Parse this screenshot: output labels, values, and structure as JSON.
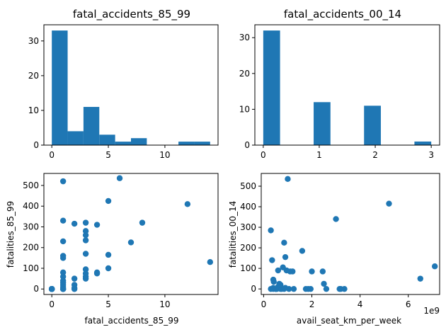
{
  "colors": {
    "bar": "#1f77b4",
    "point": "#1f77b4"
  },
  "chart_data": [
    {
      "type": "bar",
      "title": "fatal_accidents_85_99",
      "xlabel": "",
      "ylabel": "",
      "xlim": [
        -0.7,
        14.7
      ],
      "ylim": [
        0,
        34.65
      ],
      "xticks": [
        0,
        5,
        10
      ],
      "yticks": [
        0,
        10,
        20,
        30
      ],
      "bin_width": 1.4,
      "bin_edges": [
        0,
        1.4,
        2.8,
        4.2,
        5.6,
        7.0,
        8.4,
        9.8,
        11.2,
        12.6,
        14.0
      ],
      "values": [
        33,
        4,
        11,
        3,
        1,
        2,
        0,
        0,
        1,
        1
      ]
    },
    {
      "type": "bar",
      "title": "fatal_accidents_00_14",
      "xlabel": "",
      "ylabel": "",
      "xlim": [
        -0.15,
        3.15
      ],
      "ylim": [
        0,
        33.6
      ],
      "xticks": [
        0,
        1,
        2,
        3
      ],
      "yticks": [
        0,
        10,
        20,
        30
      ],
      "bin_width": 0.3,
      "bin_edges": [
        0,
        0.3,
        0.6,
        0.9,
        1.2,
        1.5,
        1.8,
        2.1,
        2.4,
        2.7,
        3.0
      ],
      "values": [
        32,
        0,
        0,
        12,
        0,
        0,
        11,
        0,
        0,
        1
      ]
    },
    {
      "type": "scatter",
      "title": "",
      "xlabel": "fatal_accidents_85_99",
      "ylabel": "fatalities_85_99",
      "xlim": [
        -0.7,
        14.7
      ],
      "ylim": [
        -26.5,
        558
      ],
      "xticks": [
        0,
        5,
        10
      ],
      "yticks": [
        0,
        100,
        200,
        300,
        400,
        500
      ],
      "x": [
        0,
        0,
        0,
        0,
        0,
        0,
        0,
        0,
        0,
        0,
        0,
        0,
        1,
        1,
        1,
        1,
        1,
        1,
        1,
        1,
        1,
        1,
        1,
        1,
        1,
        1,
        2,
        2,
        2,
        2,
        2,
        3,
        3,
        3,
        3,
        3,
        3,
        3,
        3,
        3,
        4,
        4,
        4,
        5,
        5,
        5,
        6,
        7,
        8,
        12,
        14
      ],
      "y": [
        0,
        0,
        0,
        0,
        0,
        0,
        0,
        0,
        0,
        0,
        0,
        0,
        520,
        330,
        230,
        160,
        150,
        80,
        60,
        40,
        30,
        20,
        10,
        0,
        0,
        0,
        315,
        50,
        20,
        5,
        0,
        320,
        280,
        260,
        235,
        170,
        95,
        75,
        60,
        50,
        310,
        80,
        75,
        425,
        165,
        100,
        535,
        225,
        320,
        410,
        130
      ]
    },
    {
      "type": "scatter",
      "title": "",
      "xlabel": "avail_seat_km_per_week",
      "ylabel": "fatalities_00_14",
      "x_scale_label": "1e9",
      "xlim": [
        -100000000.0,
        7300000000.0
      ],
      "ylim": [
        -27,
        562
      ],
      "xticks": [
        0,
        2,
        4,
        6
      ],
      "yticks": [
        0,
        100,
        200,
        300,
        400,
        500
      ],
      "x": [
        300000000.0,
        350000000.0,
        400000000.0,
        420000000.0,
        500000000.0,
        550000000.0,
        600000000.0,
        650000000.0,
        700000000.0,
        750000000.0,
        800000000.0,
        850000000.0,
        900000000.0,
        1000000000.0,
        1050000000.0,
        1100000000.0,
        1200000000.0,
        1250000000.0,
        1600000000.0,
        1750000000.0,
        1850000000.0,
        1950000000.0,
        2000000000.0,
        2450000000.0,
        2500000000.0,
        2600000000.0,
        3000000000.0,
        3150000000.0,
        3200000000.0,
        3350000000.0,
        300000000.0,
        400000000.0,
        600000000.0,
        700000000.0,
        850000000.0,
        5200000000.0,
        6500000000.0,
        7100000000.0,
        400000000.0,
        500000000.0,
        900000000.0,
        950000000.0
      ],
      "y": [
        0,
        140,
        0,
        35,
        0,
        0,
        10,
        25,
        0,
        0,
        105,
        225,
        155,
        535,
        0,
        85,
        85,
        0,
        185,
        0,
        0,
        0,
        85,
        85,
        25,
        0,
        340,
        0,
        0,
        0,
        285,
        45,
        90,
        20,
        0,
        415,
        50,
        110,
        5,
        0,
        5,
        90
      ]
    }
  ]
}
